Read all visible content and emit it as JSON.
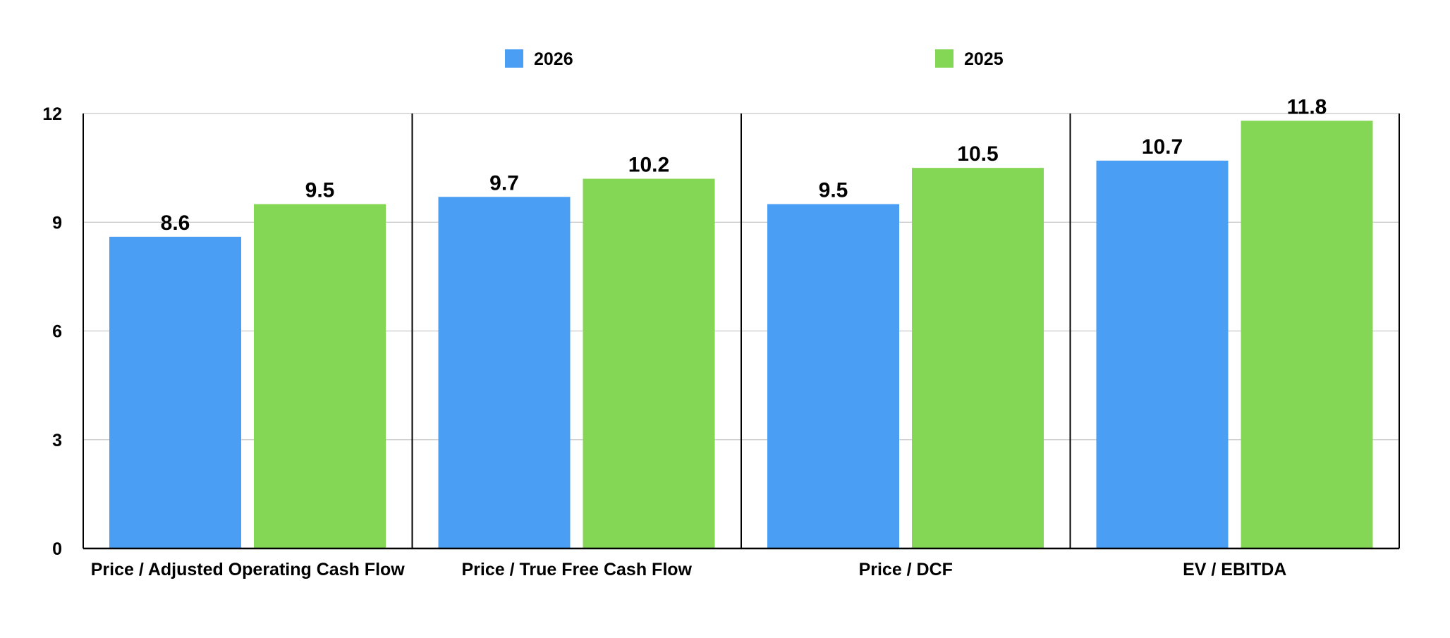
{
  "chart_data": {
    "type": "bar",
    "title": "",
    "xlabel": "",
    "ylabel": "",
    "categories": [
      "Price / Adjusted Operating Cash Flow",
      "Price / True Free Cash Flow",
      "Price / DCF",
      "EV / EBITDA"
    ],
    "series": [
      {
        "name": "2026",
        "color": "#4a9ff5",
        "values": [
          8.6,
          9.7,
          9.5,
          10.7
        ]
      },
      {
        "name": "2025",
        "color": "#84d655",
        "values": [
          9.5,
          10.2,
          10.5,
          11.8
        ]
      }
    ],
    "ylim": [
      0,
      12
    ],
    "yticks": [
      0,
      3,
      6,
      9,
      12
    ],
    "grid": true,
    "legend_position": "top-center",
    "data_labels": true
  }
}
